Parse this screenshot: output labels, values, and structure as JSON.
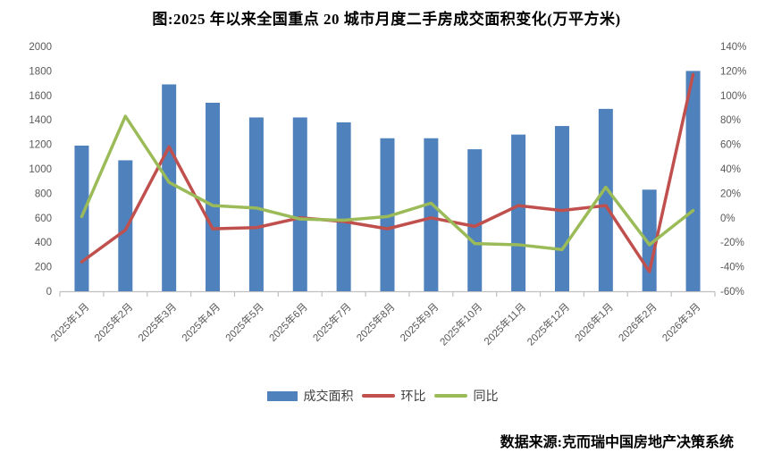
{
  "title": "图:2025 年以来全国重点 20 城市月度二手房成交面积变化(万平方米)",
  "source": "数据来源:克而瑞中国房地产决策系统",
  "colors": {
    "bar": "#4F81BD",
    "mom": "#C0504D",
    "yoy": "#9BBB59",
    "axis_text": "#595959",
    "axis_line": "#BFBFBF"
  },
  "legend": {
    "items": [
      {
        "label": "成交面积"
      },
      {
        "label": "环比"
      },
      {
        "label": "同比"
      }
    ]
  },
  "chart_data": {
    "type": "bar",
    "subtype": "bar-line-combo",
    "title": "图:2025 年以来全国重点 20 城市月度二手房成交面积变化(万平方米)",
    "categories": [
      "2025年1月",
      "2025年2月",
      "2025年3月",
      "2025年4月",
      "2025年5月",
      "2025年6月",
      "2025年7月",
      "2025年8月",
      "2025年9月",
      "2025年10月",
      "2025年11月",
      "2025年12月",
      "2026年1月",
      "2026年2月",
      "2026年3月"
    ],
    "series": [
      {
        "name": "成交面积",
        "type": "bar",
        "axis": "left",
        "unit": "万平方米",
        "values": [
          1190,
          1070,
          1690,
          1540,
          1420,
          1420,
          1380,
          1250,
          1250,
          1160,
          1280,
          1350,
          1490,
          830,
          1800
        ]
      },
      {
        "name": "环比",
        "type": "line",
        "axis": "right",
        "unit": "%",
        "values": [
          -36,
          -10,
          58,
          -9,
          -8,
          0,
          -3,
          -9,
          0,
          -7,
          10,
          6,
          10,
          -44,
          117
        ]
      },
      {
        "name": "同比",
        "type": "line",
        "axis": "right",
        "unit": "%",
        "values": [
          1,
          83,
          29,
          10,
          8,
          -1,
          -2,
          1,
          12,
          -21,
          -22,
          -26,
          25,
          -22,
          6
        ]
      }
    ],
    "left_axis": {
      "min": 0,
      "max": 2000,
      "step": 200,
      "unit": ""
    },
    "right_axis": {
      "min": -60,
      "max": 140,
      "step": 20,
      "unit": "%"
    },
    "grid": false,
    "legend_position": "bottom"
  }
}
